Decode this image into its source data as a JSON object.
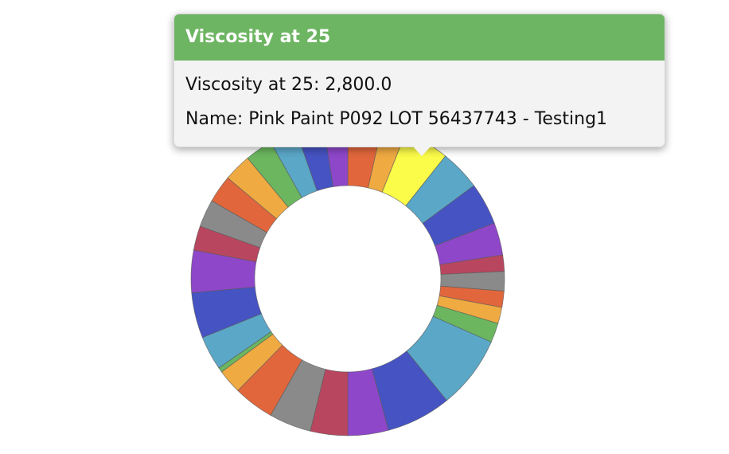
{
  "chart_data": {
    "type": "pie",
    "values": [
      2100,
      1500,
      2800,
      2500,
      2600,
      2000,
      1000,
      1200,
      1000,
      1000,
      1200,
      4500,
      4000,
      2500,
      2300,
      2600,
      2500,
      1500,
      300,
      2100,
      2800,
      2600,
      1500,
      1700,
      1700,
      1700,
      1700,
      1700,
      1700,
      1500
    ],
    "colors": [
      "#e2663c",
      "#f0aa42",
      "#fbfb4a",
      "#5ba7c7",
      "#4653c3",
      "#8e47c9",
      "#b9465f",
      "#8a8a8a",
      "#e2663c",
      "#f0aa42",
      "#6bb65f",
      "#5ba7c7",
      "#4653c3",
      "#8e47c9",
      "#b9465f",
      "#8a8a8a",
      "#e2663c",
      "#f0aa42",
      "#6bb65f",
      "#5ba7c7",
      "#4653c3",
      "#8e47c9",
      "#b9465f",
      "#8a8a8a",
      "#e2663c",
      "#f0aa42",
      "#6bb65f",
      "#5ba7c7",
      "#4653c3",
      "#8e47c9"
    ],
    "tooltip": {
      "title": "Viscosity at 25",
      "lines": [
        "Viscosity at 25: 2,800.0",
        "Name: Pink Paint P092 LOT 56437743 - Testing1"
      ]
    }
  }
}
